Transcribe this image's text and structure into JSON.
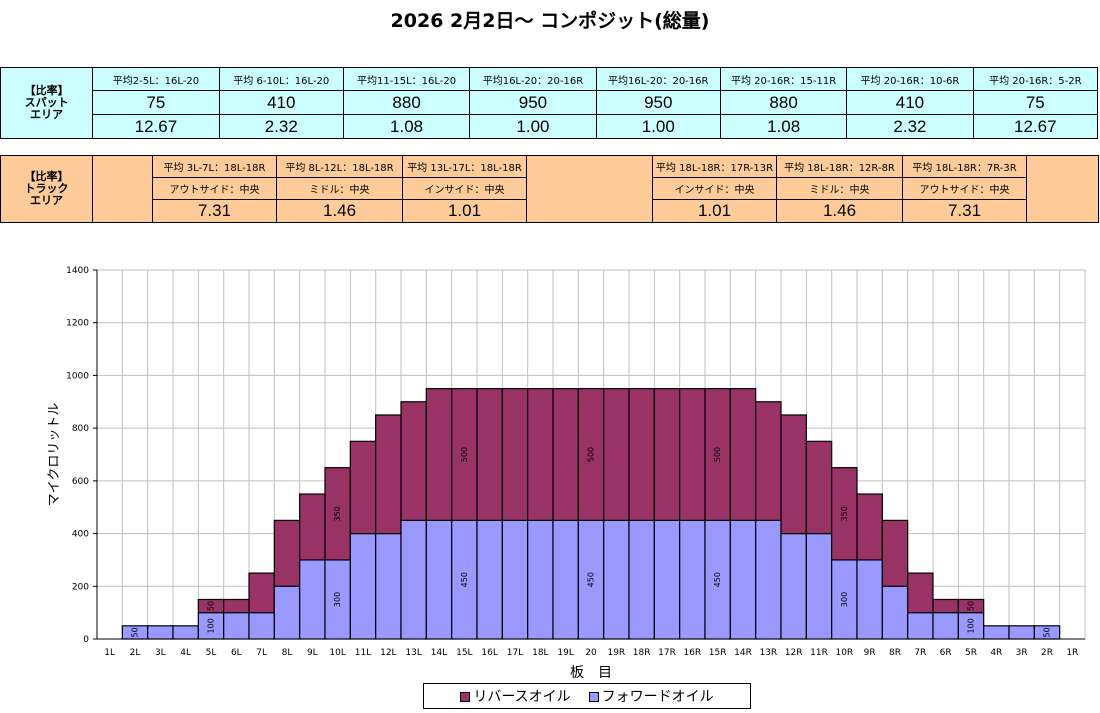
{
  "title": "2026 2月2日～ コンポジット(総量)",
  "spot": {
    "label": "【比率】\nスパット\nエリア",
    "headers": [
      "平均2-5L：16L-20",
      "平均 6-10L：16L-20",
      "平均11-15L：16L-20",
      "平均16L-20：20-16R",
      "平均16L-20：20-16R",
      "平均 20-16R：15-11R",
      "平均 20-16R：10-6R",
      "平均 20-16R：5-2R"
    ],
    "values": [
      "75",
      "410",
      "880",
      "950",
      "950",
      "880",
      "410",
      "75"
    ],
    "ratios": [
      "12.67",
      "2.32",
      "1.08",
      "1.00",
      "1.00",
      "1.08",
      "2.32",
      "12.67"
    ]
  },
  "track": {
    "label": "【比率】\nトラック\nエリア",
    "headers_left": [
      "平均 3L-7L：18L-18R",
      "平均 8L-12L：18L-18R",
      "平均 13L-17L：18L-18R"
    ],
    "sub_left": [
      "アウトサイド：中央",
      "ミドル：中央",
      "インサイド：中央"
    ],
    "values_left": [
      "7.31",
      "1.46",
      "1.01"
    ],
    "headers_right": [
      "平均 18L-18R：17R-13R",
      "平均 18L-18R：12R-8R",
      "平均 18L-18R：7R-3R"
    ],
    "sub_right": [
      "インサイド：中央",
      "ミドル：中央",
      "アウトサイド：中央"
    ],
    "values_right": [
      "1.01",
      "1.46",
      "7.31"
    ]
  },
  "legend": {
    "reverse": "リバースオイル",
    "forward": "フォワードオイル"
  },
  "colors": {
    "reverse": "#993366",
    "forward": "#9999ff",
    "spot_bg": "#ccffff",
    "track_bg": "#ffcc99"
  },
  "chart_data": {
    "type": "bar",
    "stacked": true,
    "xlabel": "板　目",
    "ylabel": "マイクロリットル",
    "ylim": [
      0,
      1400
    ],
    "yticks": [
      0,
      200,
      400,
      600,
      800,
      1000,
      1200,
      1400
    ],
    "grid": true,
    "legend_position": "bottom",
    "categories": [
      "1L",
      "2L",
      "3L",
      "4L",
      "5L",
      "6L",
      "7L",
      "8L",
      "9L",
      "10L",
      "11L",
      "12L",
      "13L",
      "14L",
      "15L",
      "16L",
      "17L",
      "18L",
      "19L",
      "20",
      "19R",
      "18R",
      "17R",
      "16R",
      "15R",
      "14R",
      "13R",
      "12R",
      "11R",
      "10R",
      "9R",
      "8R",
      "7R",
      "6R",
      "5R",
      "4R",
      "3R",
      "2R",
      "1R"
    ],
    "series": [
      {
        "name": "フォワードオイル",
        "values": [
          0,
          50,
          50,
          50,
          100,
          100,
          100,
          200,
          300,
          300,
          400,
          400,
          450,
          450,
          450,
          450,
          450,
          450,
          450,
          450,
          450,
          450,
          450,
          450,
          450,
          450,
          450,
          400,
          400,
          300,
          300,
          200,
          100,
          100,
          100,
          50,
          50,
          50,
          0
        ]
      },
      {
        "name": "リバースオイル",
        "values": [
          0,
          0,
          0,
          0,
          50,
          50,
          150,
          250,
          250,
          350,
          350,
          450,
          450,
          500,
          500,
          500,
          500,
          500,
          500,
          500,
          500,
          500,
          500,
          500,
          500,
          500,
          450,
          450,
          350,
          350,
          250,
          250,
          150,
          50,
          50,
          0,
          0,
          0,
          0
        ]
      }
    ],
    "data_labels": [
      {
        "category": "2L",
        "series": "フォワードオイル",
        "text": "50"
      },
      {
        "category": "5L",
        "series": "フォワードオイル",
        "text": "100"
      },
      {
        "category": "5L",
        "series": "リバースオイル",
        "text": "50"
      },
      {
        "category": "10L",
        "series": "フォワードオイル",
        "text": "300"
      },
      {
        "category": "10L",
        "series": "リバースオイル",
        "text": "350"
      },
      {
        "category": "15L",
        "series": "フォワードオイル",
        "text": "450"
      },
      {
        "category": "15L",
        "series": "リバースオイル",
        "text": "500"
      },
      {
        "category": "20",
        "series": "フォワードオイル",
        "text": "450"
      },
      {
        "category": "20",
        "series": "リバースオイル",
        "text": "500"
      },
      {
        "category": "15R",
        "series": "フォワードオイル",
        "text": "450"
      },
      {
        "category": "15R",
        "series": "リバースオイル",
        "text": "500"
      },
      {
        "category": "10R",
        "series": "フォワードオイル",
        "text": "300"
      },
      {
        "category": "10R",
        "series": "リバースオイル",
        "text": "350"
      },
      {
        "category": "5R",
        "series": "フォワードオイル",
        "text": "100"
      },
      {
        "category": "5R",
        "series": "リバースオイル",
        "text": "50"
      },
      {
        "category": "2R",
        "series": "フォワードオイル",
        "text": "50"
      }
    ]
  }
}
